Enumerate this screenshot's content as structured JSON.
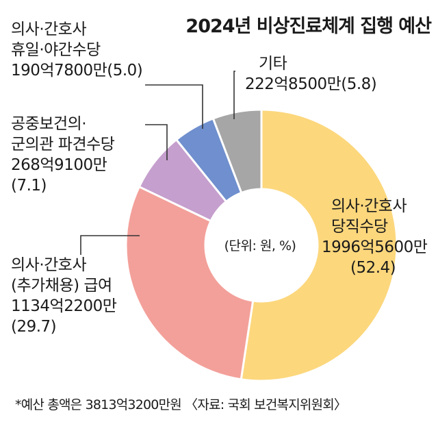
{
  "title": "2024년 비상진료체계 집행 예산",
  "center_unit": "(단위: 원, %)",
  "footnote": "*예산 총액은 3813억3200만원 〈자료: 국회 보건복지위원회〉",
  "colors": {
    "slice_1": "#fcd77c",
    "slice_2": "#f3a09a",
    "slice_3": "#c59fcd",
    "slice_4": "#6f8fce",
    "slice_5": "#a6a6a6"
  },
  "chart_data": {
    "type": "pie",
    "title": "2024년 비상진료체계 집행 예산",
    "unit": "(단위: 원, %)",
    "start": "top",
    "direction": "clockwise",
    "slices": [
      {
        "label_lines": [
          "의사·간호사",
          "당직수당",
          "1996억5600만",
          "(52.4)"
        ],
        "amount": "1996억5600만",
        "value": 52.4
      },
      {
        "label_lines": [
          "의사·간호사",
          "(추가채용) 급여",
          "1134억2200만",
          "(29.7)"
        ],
        "amount": "1134억2200만",
        "value": 29.7
      },
      {
        "label_lines": [
          "공중보건의·",
          "군의관 파견수당",
          "268억9100만",
          "(7.1)"
        ],
        "amount": "268억9100만",
        "value": 7.1
      },
      {
        "label_lines": [
          "의사·간호사",
          "휴일·야간수당",
          "190억7800만(5.0)"
        ],
        "amount": "190억7800만",
        "value": 5.0
      },
      {
        "label_lines": [
          "기타",
          "222억8500만(5.8)"
        ],
        "amount": "222억8500만",
        "value": 5.8
      }
    ]
  }
}
